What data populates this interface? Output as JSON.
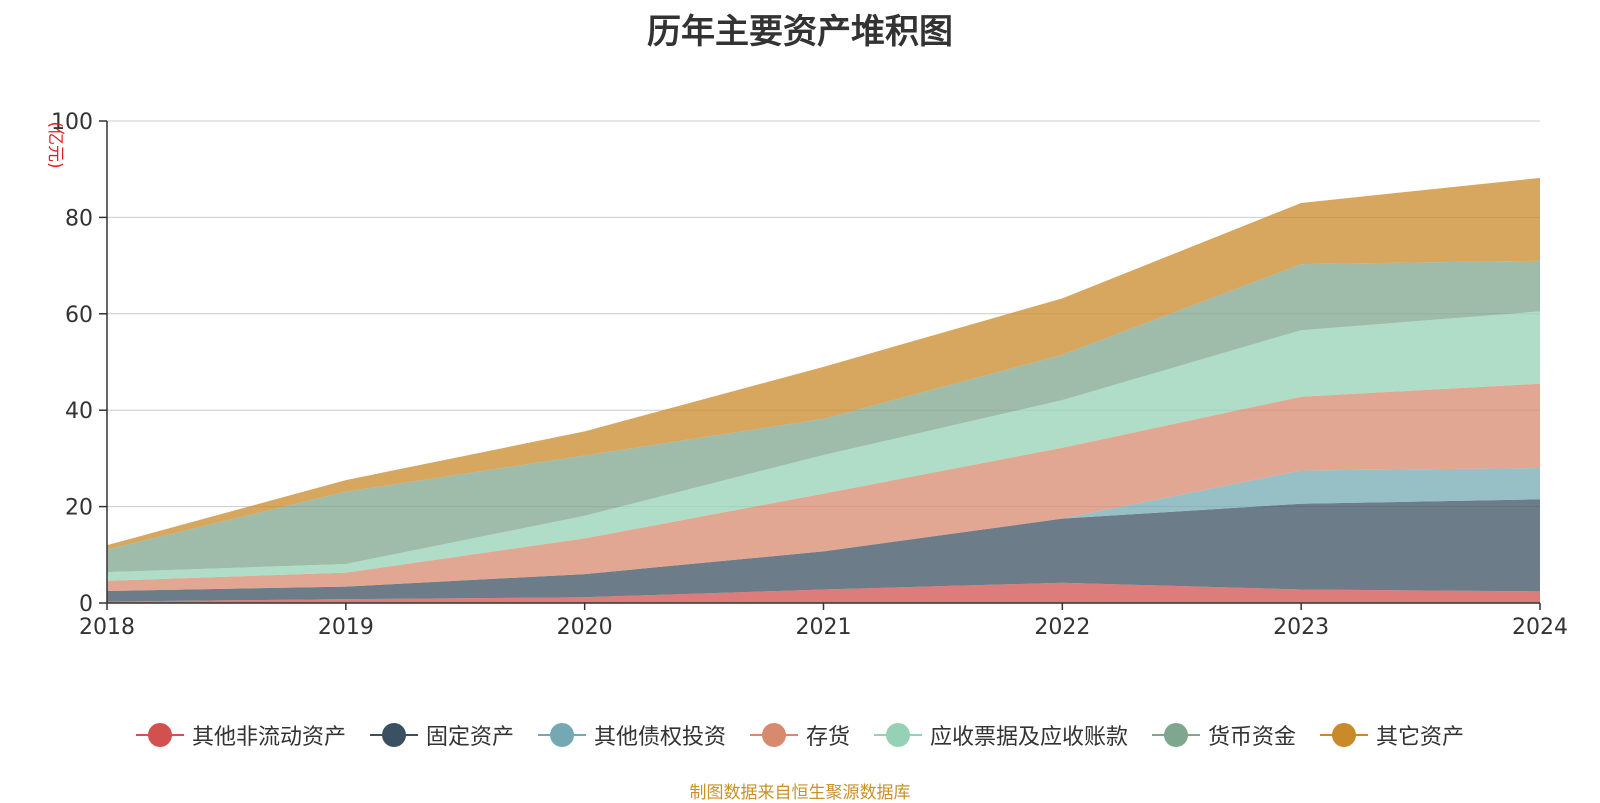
{
  "chart_data": {
    "type": "area",
    "stacked": true,
    "title": "历年主要资产堆积图",
    "ylabel": "(亿元)",
    "xlabel": "",
    "x": [
      "2018",
      "2019",
      "2020",
      "2021",
      "2022",
      "2023",
      "2024"
    ],
    "ylim": [
      0,
      100
    ],
    "yticks": [
      0,
      20,
      40,
      60,
      80,
      100
    ],
    "grid": true,
    "legend_position": "bottom",
    "series": [
      {
        "name": "其他非流动资产",
        "color": "#d2514f",
        "values": [
          0.3,
          0.8,
          1.2,
          2.8,
          4.2,
          2.8,
          2.4
        ]
      },
      {
        "name": "固定资产",
        "color": "#3b5161",
        "values": [
          2.2,
          2.6,
          4.8,
          7.9,
          13.3,
          17.8,
          19.1
        ]
      },
      {
        "name": "其他债权投资",
        "color": "#74a9b3",
        "values": [
          0,
          0,
          0,
          0,
          0,
          6.9,
          6.5
        ]
      },
      {
        "name": "存货",
        "color": "#d88a6e",
        "values": [
          2.1,
          2.9,
          7.4,
          12.0,
          14.7,
          15.3,
          17.5
        ]
      },
      {
        "name": "应收票据及应收账款",
        "color": "#95d1b4",
        "values": [
          1.8,
          1.8,
          4.7,
          8.0,
          9.9,
          13.8,
          15.0
        ]
      },
      {
        "name": "货币资金",
        "color": "#7fa68f",
        "values": [
          4.7,
          15.0,
          12.5,
          7.5,
          9.4,
          13.7,
          10.5
        ]
      },
      {
        "name": "其它资产",
        "color": "#c98a2a",
        "values": [
          0.9,
          2.4,
          5.0,
          10.8,
          11.7,
          12.7,
          17.2
        ]
      }
    ],
    "source": "制图数据来自恒生聚源数据库"
  }
}
